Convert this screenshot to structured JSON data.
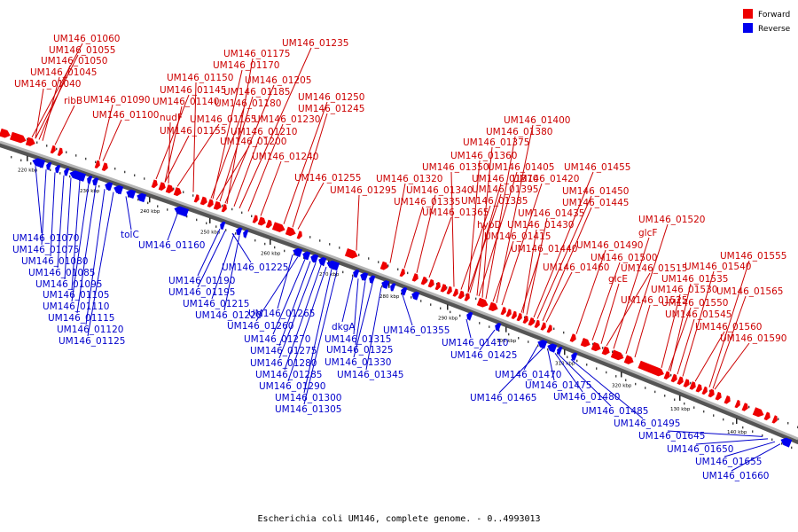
{
  "caption": "Escherichia coli UM146, complete genome. - 0..4993013",
  "legend": [
    {
      "label": "Forward",
      "color": "#ee0000"
    },
    {
      "label": "Reverse",
      "color": "#0000ee"
    }
  ],
  "colors": {
    "forward": "#ee0000",
    "reverse": "#0000ee",
    "backbone": "#777777",
    "forward_text": "#cc0000",
    "reverse_text": "#0000cc"
  },
  "ticks": [
    "220 kbp",
    "230 kbp",
    "240 kbp",
    "250 kbp",
    "260 kbp",
    "270 kbp",
    "280 kbp",
    "290 kbp",
    "300 kbp",
    "310 kbp",
    "320 kbp",
    "130 kbp",
    "140 kbp"
  ],
  "forward_labels": [
    "UM146_01060",
    "UM146_01055",
    "UM146_01050",
    "UM146_01045",
    "UM146_01040",
    "ribB",
    "UM146_01090",
    "UM146_01100",
    "UM146_01235",
    "UM146_01175",
    "UM146_01170",
    "UM146_01150",
    "UM146_01205",
    "UM146_01145",
    "UM146_01185",
    "UM146_01250",
    "UM146_01140",
    "UM146_01180",
    "UM146_01245",
    "nudF",
    "UM146_01165",
    "UM146_01230",
    "UM146_01155",
    "UM146_01210",
    "UM146_01200",
    "UM146_01240",
    "UM146_01255",
    "UM146_01295",
    "UM146_01400",
    "UM146_01380",
    "UM146_01375",
    "UM146_01360",
    "UM146_01350",
    "UM146_01405",
    "UM146_01455",
    "UM146_01320",
    "UM146_01370",
    "UM146_01420",
    "UM146_01340",
    "UM146_01395",
    "UM146_01450",
    "UM146_01335",
    "UM146_01385",
    "UM146_01445",
    "UM146_01365",
    "UM146_01435",
    "hybD",
    "UM146_01430",
    "UM146_01415",
    "UM146_01440",
    "UM146_01520",
    "glcF",
    "UM146_01490",
    "UM146_01500",
    "UM146_01515",
    "UM146_01460",
    "glcE",
    "UM146_01555",
    "UM146_01540",
    "UM146_01535",
    "UM146_01565",
    "UM146_01530",
    "UM146_01550",
    "UM146_01525",
    "UM146_01545",
    "UM146_01560",
    "UM146_01590"
  ],
  "reverse_labels": [
    "UM146_01070",
    "UM146_01075",
    "UM146_01080",
    "UM146_01085",
    "UM146_01095",
    "UM146_01105",
    "UM146_01110",
    "UM146_01115",
    "UM146_01120",
    "UM146_01125",
    "tolC",
    "UM146_01160",
    "UM146_01225",
    "UM146_01190",
    "UM146_01195",
    "UM146_01215",
    "UM146_01220",
    "UM146_01265",
    "UM146_01260",
    "UM146_01270",
    "UM146_01275",
    "UM146_01280",
    "UM146_01285",
    "UM146_01290",
    "UM146_01300",
    "UM146_01305",
    "dkgA",
    "UM146_01315",
    "UM146_01325",
    "UM146_01330",
    "UM146_01345",
    "UM146_01355",
    "UM146_01410",
    "UM146_01425",
    "UM146_01470",
    "UM146_01465",
    "UM146_01475",
    "UM146_01480",
    "UM146_01485",
    "UM146_01495",
    "UM146_01645",
    "UM146_01650",
    "UM146_01655",
    "UM146_01660"
  ]
}
